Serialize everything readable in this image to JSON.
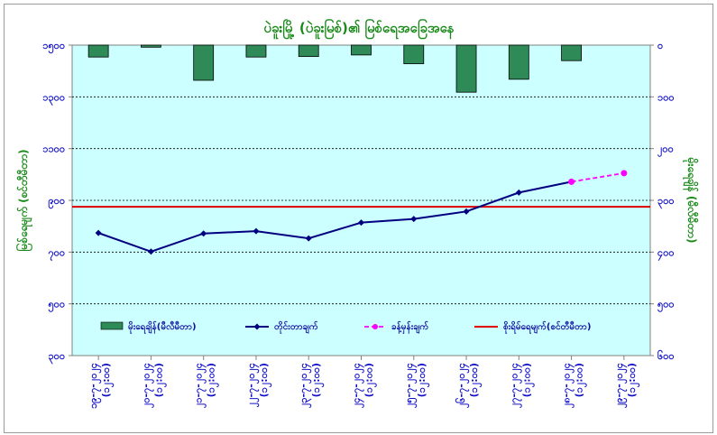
{
  "chart_data": {
    "type": "bar+line",
    "title": "ပဲခူးမြို့ (ပဲခူးမြစ်)၏ မြစ်ရေအခြေအနေ",
    "ylabel_left": "မြစ်ရေမျက် (စင်တီမီတာ)",
    "ylabel_right": "မိုးရေချိန် (မီလီမီတာ)",
    "left_axis": {
      "min": 300,
      "max": 1500,
      "step": 200,
      "ticks": [
        "၁၅၀၀",
        "၁၃၀၀",
        "၁၁၀၀",
        "၉၀၀",
        "၇၀၀",
        "၅၀၀",
        "၃၀၀"
      ]
    },
    "right_axis": {
      "min": 0,
      "max": 600,
      "step": 100,
      "inverted": true,
      "ticks": [
        "၀",
        "၁၀၀",
        "၂၀၀",
        "၃၀၀",
        "၄၀၀",
        "၅၀၀",
        "၆၀၀"
      ]
    },
    "categories": [
      {
        "date": "၁၉-၇-၂၀၂၄",
        "time": "(၁၂:၀၀)"
      },
      {
        "date": "၂၀-၇-၂၀၂၄",
        "time": "(၁၂:၀၀)"
      },
      {
        "date": "၂၁-၇-၂၀၂၄",
        "time": "(၁၂:၀၀)"
      },
      {
        "date": "၂၂-၇-၂၀၂၄",
        "time": "(၁၂:၀၀)"
      },
      {
        "date": "၂၃-၇-၂၀၂၄",
        "time": "(၁၂:၀၀)"
      },
      {
        "date": "၂၄-၇-၂၀၂၄",
        "time": "(၁၂:၀၀)"
      },
      {
        "date": "၂၅-၇-၂၀၂၄",
        "time": "(၁၂:၀၀)"
      },
      {
        "date": "၂၆-၇-၂၀၂၄",
        "time": "(၁၂:၀၀)"
      },
      {
        "date": "၂၇-၇-၂၀၂၄",
        "time": "(၁၂:၀၀)"
      },
      {
        "date": "၂၈-၇-၂၀၂၄",
        "time": "(၁၂:၀၀)"
      },
      {
        "date": "၂၉-၇-၂၀၂၄",
        "time": "(၁၂:၀၀)"
      }
    ],
    "rainfall": {
      "name": "မိုးရေချိန်(မီလီမီတာ)",
      "color": "#2e8b57",
      "axis": "right",
      "values": [
        23,
        4,
        68,
        23,
        22,
        19,
        36,
        91,
        66,
        30,
        null
      ]
    },
    "observed": {
      "name": "တိုင်းတာချက်",
      "color": "#000080",
      "axis": "left",
      "values": [
        774,
        702,
        772,
        781,
        753,
        814,
        828,
        857,
        930,
        972,
        null
      ]
    },
    "forecast": {
      "name": "ခန့်မှန်းချက်",
      "color": "#ff00ff",
      "axis": "left",
      "points": [
        [
          9,
          972
        ],
        [
          10,
          1005
        ]
      ]
    },
    "danger": {
      "name": "စိုးရိမ်ရေမျက်(စင်တီမီတာ)",
      "color": "#e00000",
      "axis": "left",
      "value": 875
    },
    "grid": true,
    "legend_position": "bottom"
  }
}
